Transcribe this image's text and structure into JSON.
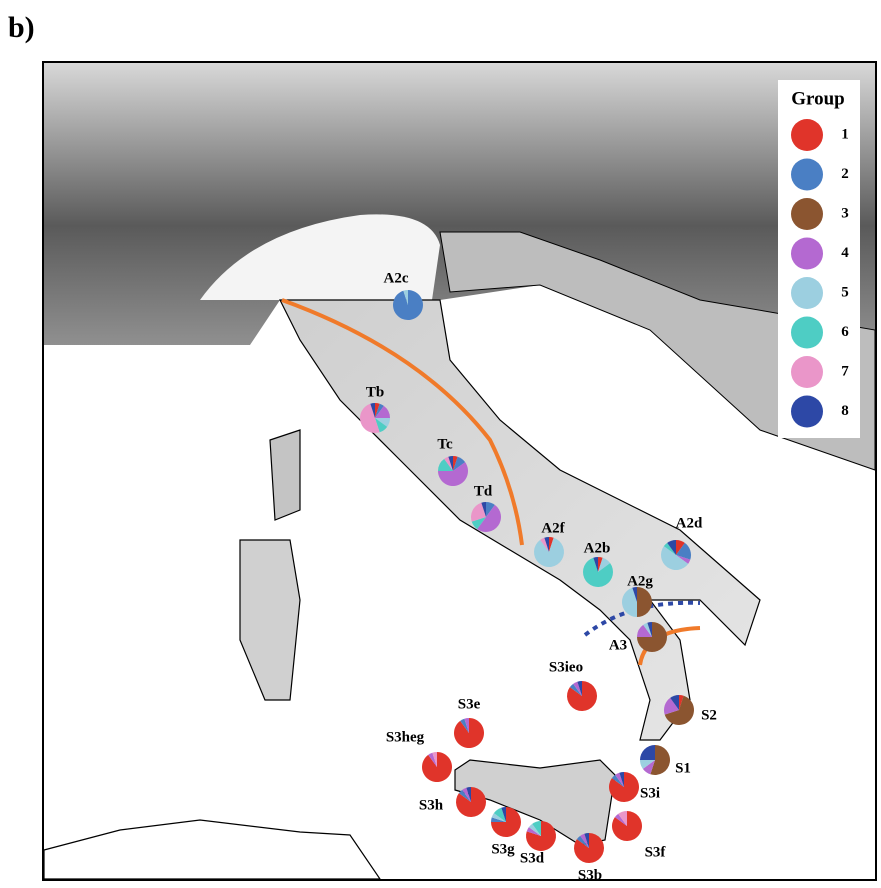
{
  "panel_label": "b)",
  "legend": {
    "title": "Group",
    "groups": [
      {
        "label": "1",
        "color": "#e0342a"
      },
      {
        "label": "2",
        "color": "#4a7fc4"
      },
      {
        "label": "3",
        "color": "#8b5530"
      },
      {
        "label": "4",
        "color": "#b469d1"
      },
      {
        "label": "5",
        "color": "#9ccfe0"
      },
      {
        "label": "6",
        "color": "#4ecdc4"
      },
      {
        "label": "7",
        "color": "#ea96c9"
      },
      {
        "label": "8",
        "color": "#2d48a6"
      }
    ]
  },
  "sites": [
    {
      "label": "A2c",
      "values": [
        0,
        95,
        0,
        0,
        5,
        0,
        0,
        0
      ]
    },
    {
      "label": "Tb",
      "values": [
        5,
        5,
        0,
        15,
        10,
        10,
        50,
        5
      ]
    },
    {
      "label": "Tc",
      "values": [
        5,
        10,
        0,
        60,
        0,
        15,
        5,
        5
      ]
    },
    {
      "label": "Td",
      "values": [
        0,
        10,
        0,
        50,
        0,
        10,
        25,
        5
      ]
    },
    {
      "label": "A2f",
      "values": [
        5,
        0,
        0,
        0,
        85,
        0,
        5,
        5
      ]
    },
    {
      "label": "A2b",
      "values": [
        5,
        0,
        0,
        0,
        10,
        80,
        0,
        5
      ]
    },
    {
      "label": "A2d",
      "values": [
        10,
        20,
        0,
        5,
        50,
        5,
        0,
        10
      ]
    },
    {
      "label": "A2g",
      "values": [
        0,
        0,
        50,
        0,
        45,
        0,
        0,
        5
      ]
    },
    {
      "label": "A3",
      "values": [
        0,
        0,
        75,
        15,
        5,
        0,
        0,
        5
      ]
    },
    {
      "label": "S3ieo",
      "values": [
        85,
        5,
        0,
        5,
        0,
        0,
        0,
        5
      ]
    },
    {
      "label": "S3e",
      "values": [
        90,
        5,
        0,
        5,
        0,
        0,
        0,
        0
      ]
    },
    {
      "label": "S3heg",
      "values": [
        90,
        0,
        0,
        5,
        0,
        0,
        5,
        0
      ]
    },
    {
      "label": "S3h",
      "values": [
        85,
        5,
        0,
        5,
        0,
        0,
        0,
        5
      ]
    },
    {
      "label": "S3g",
      "values": [
        75,
        5,
        0,
        0,
        5,
        10,
        0,
        5
      ]
    },
    {
      "label": "S3d",
      "values": [
        80,
        0,
        0,
        5,
        5,
        10,
        0,
        0
      ]
    },
    {
      "label": "S3b",
      "values": [
        85,
        5,
        0,
        5,
        0,
        0,
        0,
        5
      ]
    },
    {
      "label": "S3f",
      "values": [
        85,
        0,
        0,
        5,
        0,
        0,
        10,
        0
      ]
    },
    {
      "label": "S3i",
      "values": [
        85,
        5,
        0,
        5,
        0,
        0,
        0,
        5
      ]
    },
    {
      "label": "S2",
      "values": [
        5,
        0,
        65,
        20,
        0,
        0,
        0,
        10
      ]
    },
    {
      "label": "S1",
      "values": [
        0,
        0,
        55,
        10,
        10,
        0,
        0,
        25
      ]
    }
  ]
}
